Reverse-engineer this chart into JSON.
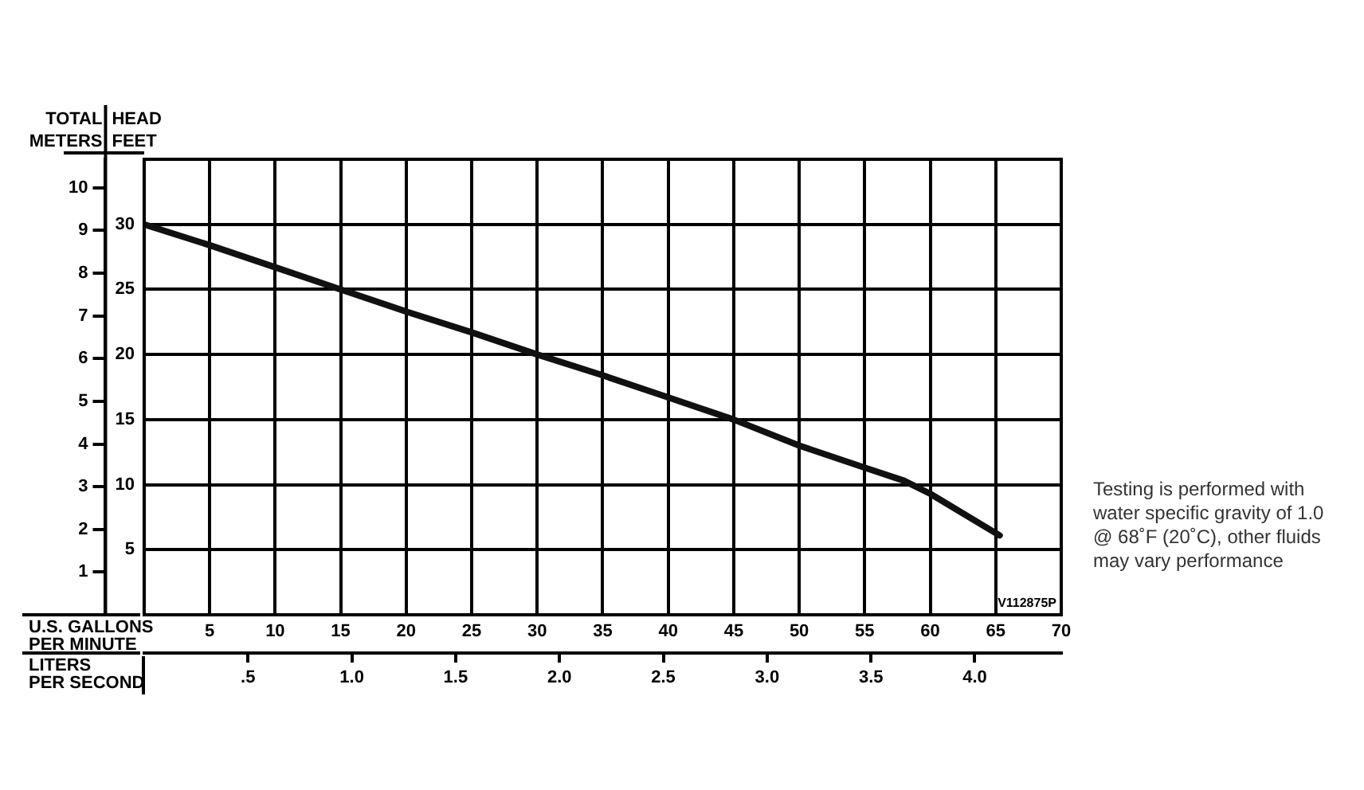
{
  "chart_data": {
    "type": "line",
    "ylabel": "HEAD\nFEET",
    "y2label": "TOTAL\nMETERS",
    "xlabel": "U.S. GALLONS\nPER MINUTE",
    "x2label": "LITERS\nPER SECOND",
    "x": [
      0,
      5,
      10,
      15,
      20,
      25,
      30,
      35,
      40,
      45,
      50,
      55,
      58,
      60,
      65.3
    ],
    "series": [
      {
        "color": "#111111",
        "values": [
          30,
          28.4,
          26.7,
          25,
          23.3,
          21.7,
          20,
          18.4,
          16.7,
          15,
          13,
          11.3,
          10.3,
          9.3,
          6.1
        ]
      }
    ],
    "xlim": [
      0,
      70
    ],
    "xticks": [
      5,
      10,
      15,
      20,
      25,
      30,
      35,
      40,
      45,
      50,
      55,
      60,
      65,
      70
    ],
    "ylim": [
      0,
      35
    ],
    "yticks": [
      5,
      10,
      15,
      20,
      25,
      30
    ],
    "y2lim": [
      0,
      10.668
    ],
    "y2ticks": [
      1,
      2,
      3,
      4,
      5,
      6,
      7,
      8,
      9,
      10
    ],
    "x2lim": [
      0,
      4.4163
    ],
    "x2ticks": [
      {
        "value": 0.5,
        "label": ".5"
      },
      {
        "value": 1,
        "label": "1.0"
      },
      {
        "value": 1.5,
        "label": "1.5"
      },
      {
        "value": 2,
        "label": "2.0"
      },
      {
        "value": 2.5,
        "label": "2.5"
      },
      {
        "value": 3,
        "label": "3.0"
      },
      {
        "value": 3.5,
        "label": "3.5"
      },
      {
        "value": 4,
        "label": "4.0"
      }
    ],
    "grid": true,
    "legend": false,
    "marker": "none",
    "line_style": "solid",
    "annotations": [
      "V112875P",
      "Testing is performed with water specific gravity of 1.0 @ 68˚F (20˚C), other fluids may vary performance"
    ]
  }
}
